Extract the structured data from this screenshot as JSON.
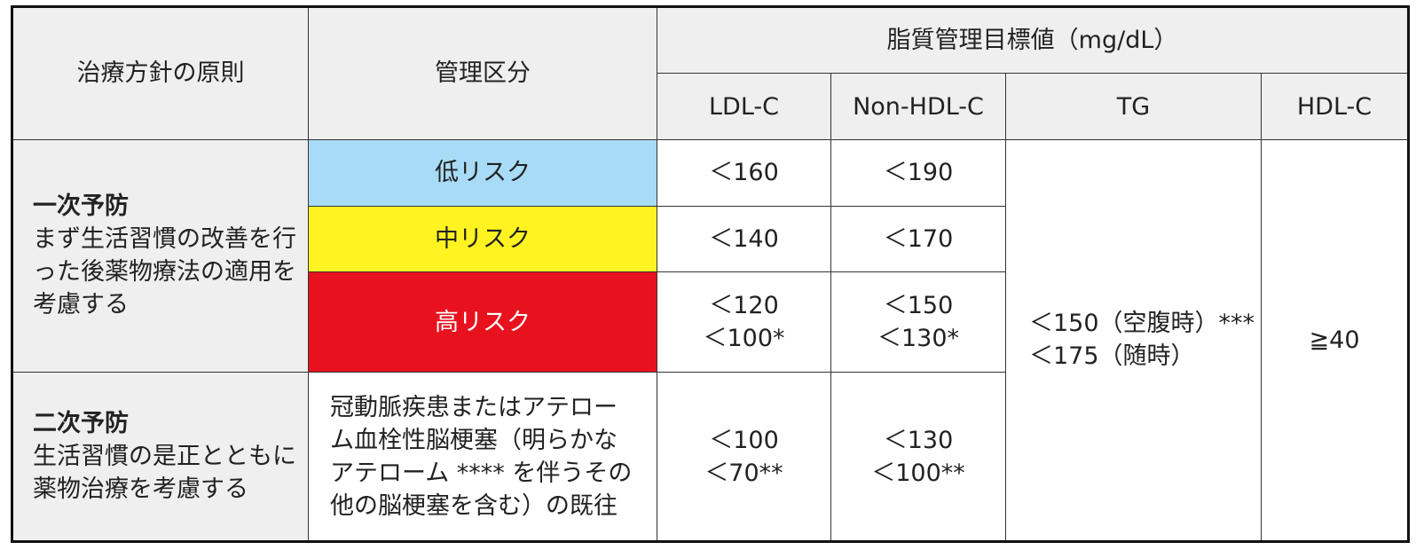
{
  "header": {
    "principle": "治療方針の原則",
    "category": "管理区分",
    "target_group": "脂質管理目標値（mg/dL）",
    "columns": [
      "LDL-C",
      "Non-HDL-C",
      "TG",
      "HDL-C"
    ]
  },
  "primary": {
    "title": "一次予防",
    "desc": "まず生活習慣の改善を行った後薬物療法の適用を考慮する",
    "rows": [
      {
        "category": "低リスク",
        "color": "#a7dbf6",
        "ldl": [
          "＜160"
        ],
        "nonhdl": [
          "＜190"
        ]
      },
      {
        "category": "中リスク",
        "color": "#fff421",
        "ldl": [
          "＜140"
        ],
        "nonhdl": [
          "＜170"
        ]
      },
      {
        "category": "高リスク",
        "color": "#e8121e",
        "ldl": [
          "＜120",
          "＜100*"
        ],
        "nonhdl": [
          "＜150",
          "＜130*"
        ]
      }
    ]
  },
  "secondary": {
    "title": "二次予防",
    "desc": "生活習慣の是正とともに薬物治療を考慮する",
    "category": "冠動脈疾患またはアテローム血栓性脳梗塞（明らかなアテローム **** を伴うその他の脳梗塞を含む）の既往",
    "ldl": [
      "＜100",
      "＜70**"
    ],
    "nonhdl": [
      "＜130",
      "＜100**"
    ]
  },
  "shared": {
    "tg": [
      "＜150（空腹時）***",
      "＜175（随時）"
    ],
    "hdl": "≧40"
  }
}
